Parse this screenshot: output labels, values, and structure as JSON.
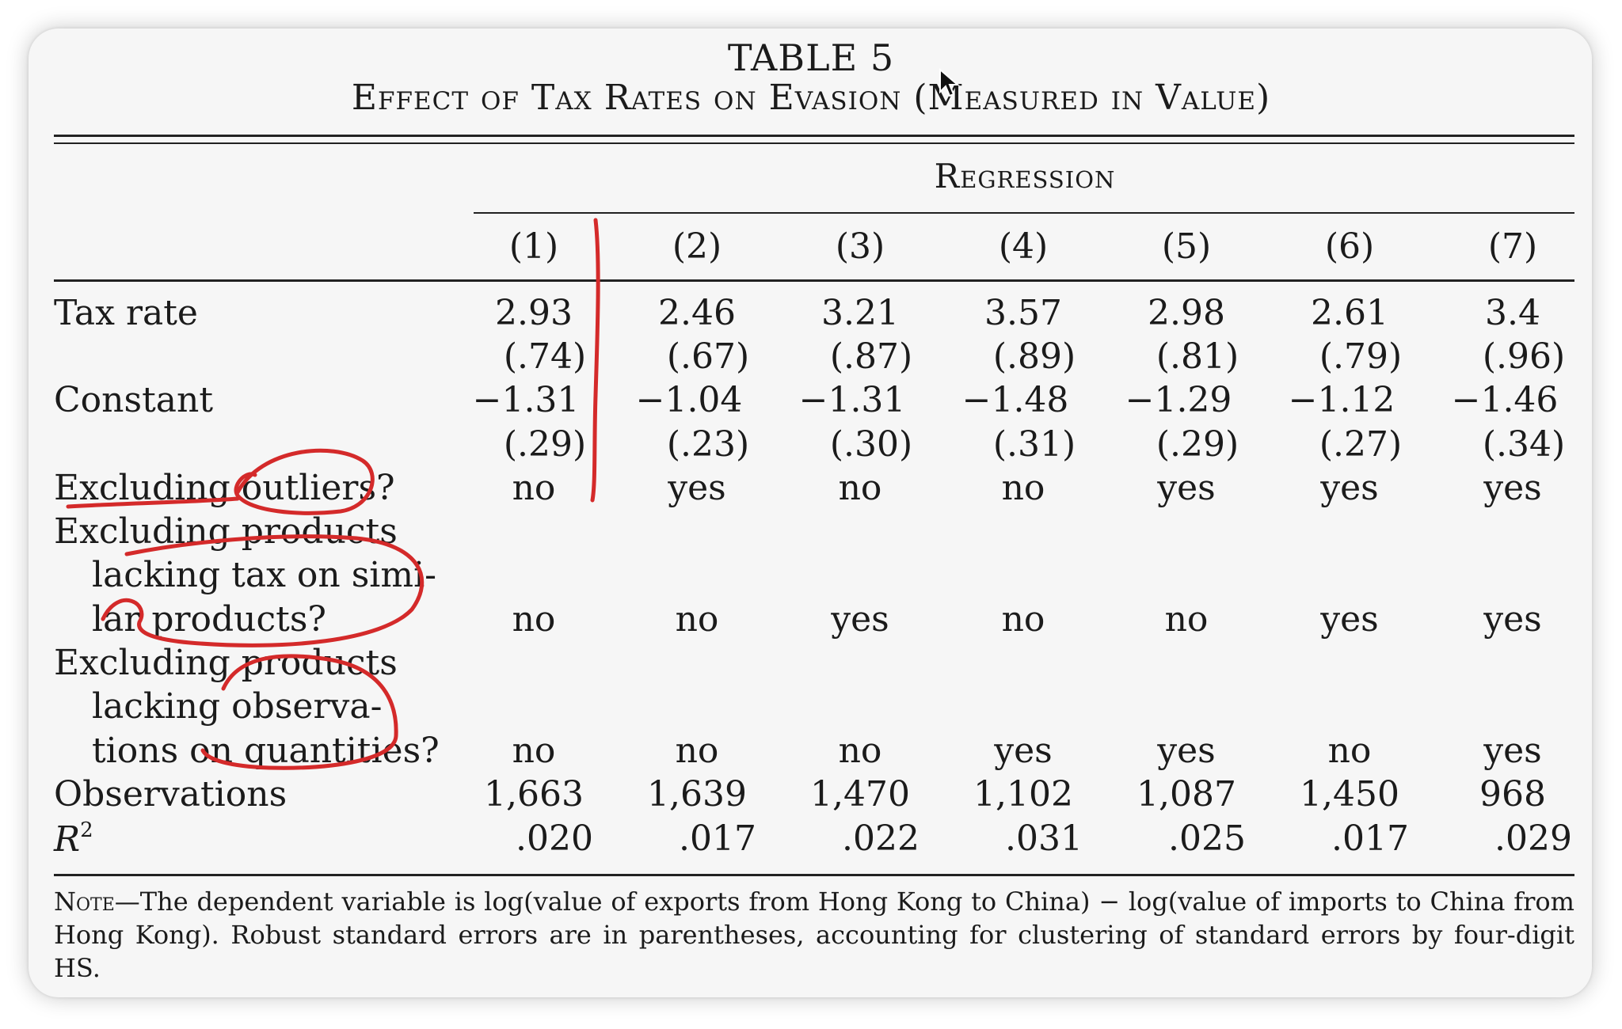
{
  "table": {
    "caption": "TABLE 5",
    "title": "Effect of Tax Rates on Evasion (Measured in Value)",
    "spanner": "Regression",
    "columns": [
      "(1)",
      "(2)",
      "(3)",
      "(4)",
      "(5)",
      "(6)",
      "(7)"
    ],
    "tax_rate": {
      "label": "Tax rate",
      "coef": [
        "2.93",
        "2.46",
        "3.21",
        "3.57",
        "2.98",
        "2.61",
        "3.4"
      ],
      "se": [
        "(.74)",
        "(.67)",
        "(.87)",
        "(.89)",
        "(.81)",
        "(.79)",
        "(.96)"
      ]
    },
    "constant": {
      "label": "Constant",
      "coef": [
        "−1.31",
        "−1.04",
        "−1.31",
        "−1.48",
        "−1.29",
        "−1.12",
        "−1.46"
      ],
      "se": [
        "(.29)",
        "(.23)",
        "(.30)",
        "(.31)",
        "(.29)",
        "(.27)",
        "(.34)"
      ]
    },
    "excl_outliers": {
      "label": "Excluding outliers?",
      "values": [
        "no",
        "yes",
        "no",
        "no",
        "yes",
        "yes",
        "yes"
      ]
    },
    "excl_products_tax": {
      "label_lines": [
        "Excluding products",
        "lacking tax on simi-",
        "lar products?"
      ],
      "values": [
        "no",
        "no",
        "yes",
        "no",
        "no",
        "yes",
        "yes"
      ]
    },
    "excl_products_obs": {
      "label_lines": [
        "Excluding products",
        "lacking observa-",
        "tions on quantities?"
      ],
      "values": [
        "no",
        "no",
        "no",
        "yes",
        "yes",
        "no",
        "yes"
      ]
    },
    "observations": {
      "label": "Observations",
      "values": [
        "1,663",
        "1,639",
        "1,470",
        "1,102",
        "1,087",
        "1,450",
        "968"
      ]
    },
    "r2": {
      "label": "R",
      "label_sup": "2",
      "values": [
        ".020",
        ".017",
        ".022",
        ".031",
        ".025",
        ".017",
        ".029"
      ]
    },
    "note": {
      "lead": "Note",
      "text": "—The dependent variable is log(value of exports from Hong Kong to China) − log(value of imports to China from Hong Kong). Robust standard errors are in parentheses, accounting for clustering of standard errors by four-digit HS."
    }
  },
  "annotation_color": "#d42a2a"
}
